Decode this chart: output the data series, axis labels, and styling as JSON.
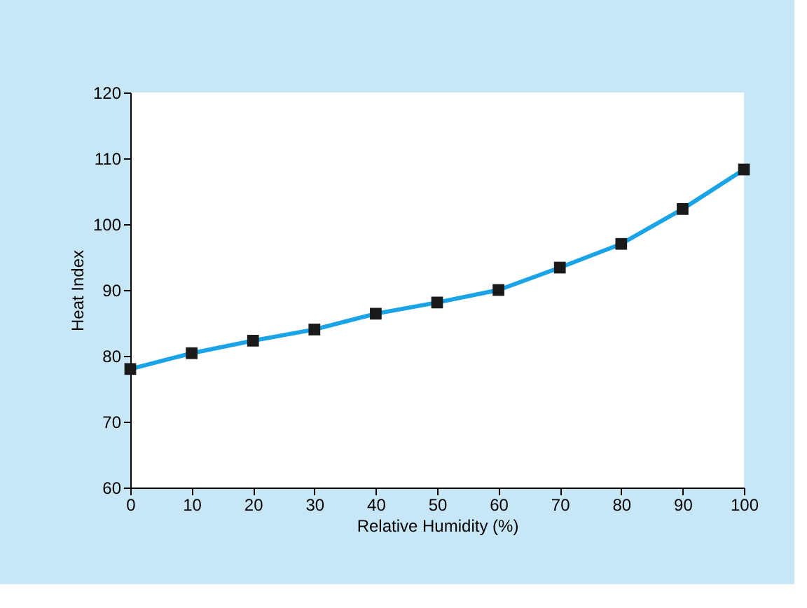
{
  "chart_data": {
    "type": "line",
    "xlabel": "Relative Humidity (%)",
    "ylabel": "Heat Index",
    "x": [
      0,
      10,
      20,
      30,
      40,
      50,
      60,
      70,
      80,
      90,
      100
    ],
    "series": [
      {
        "color": "#1aa3e6",
        "values": [
          78,
          80.4,
          82.3,
          84,
          86.4,
          88.1,
          90,
          93.4,
          97,
          102.3,
          108.3
        ]
      }
    ],
    "xlim": [
      0,
      100
    ],
    "xticks": [
      0,
      10,
      20,
      30,
      40,
      50,
      60,
      70,
      80,
      90,
      100
    ],
    "ylim": [
      60,
      120
    ],
    "yticks": [
      60,
      70,
      80,
      90,
      100,
      110,
      120
    ],
    "grid": false,
    "marker": "square",
    "line_style": "solid"
  }
}
